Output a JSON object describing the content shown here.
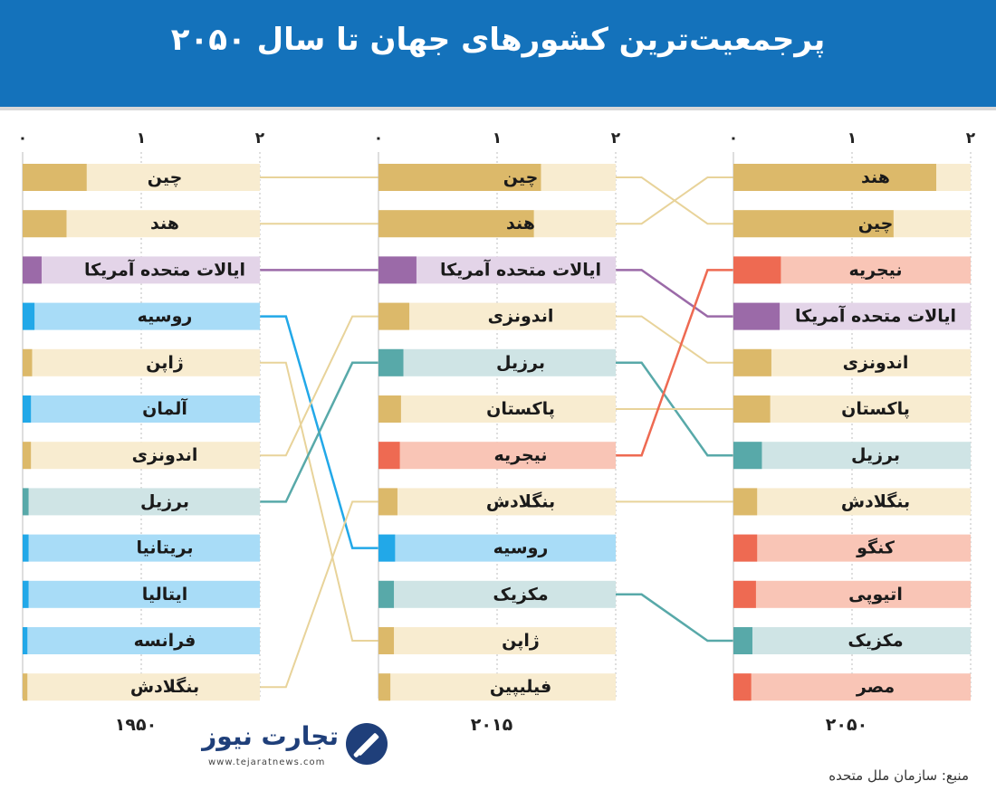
{
  "header": {
    "title": "پرجمعیت‌ترین کشورهای جهان تا سال ۲۰۵۰"
  },
  "source": "منبع: سازمان ملل متحده",
  "logo": {
    "name": "تجارت نیوز",
    "url": "www.tejaratnews.com"
  },
  "colors": {
    "header_bg": "#1472bb",
    "asia_bar": "#dcb96a",
    "asia_bg": "#f8ecd0",
    "america_bar": "#9b6aa8",
    "america_bg": "#e3d4e8",
    "europe_bar": "#22a8e8",
    "europe_bg": "#a8dcf7",
    "latam_bar": "#58a9a9",
    "latam_bg": "#cfe4e5",
    "africa_bar": "#ee6a52",
    "africa_bg": "#f9c5b6"
  },
  "chart_data": {
    "type": "bar",
    "axis_ticks": [
      "۰",
      "۱",
      "۲"
    ],
    "xlim": [
      0,
      2
    ],
    "panels": [
      {
        "year": "۱۹۵۰",
        "bars": [
          {
            "name": "چین",
            "value": 0.54,
            "group": "asia"
          },
          {
            "name": "هند",
            "value": 0.37,
            "group": "asia"
          },
          {
            "name": "ایالات متحده آمریکا",
            "value": 0.16,
            "group": "america"
          },
          {
            "name": "روسیه",
            "value": 0.1,
            "group": "europe"
          },
          {
            "name": "ژاپن",
            "value": 0.08,
            "group": "asia"
          },
          {
            "name": "آلمان",
            "value": 0.07,
            "group": "europe"
          },
          {
            "name": "اندونزی",
            "value": 0.07,
            "group": "asia"
          },
          {
            "name": "برزیل",
            "value": 0.05,
            "group": "latam"
          },
          {
            "name": "بریتانیا",
            "value": 0.05,
            "group": "europe"
          },
          {
            "name": "ایتالیا",
            "value": 0.05,
            "group": "europe"
          },
          {
            "name": "فرانسه",
            "value": 0.04,
            "group": "europe"
          },
          {
            "name": "بنگلادش",
            "value": 0.04,
            "group": "asia"
          }
        ]
      },
      {
        "year": "۲۰۱۵",
        "bars": [
          {
            "name": "چین",
            "value": 1.37,
            "group": "asia"
          },
          {
            "name": "هند",
            "value": 1.31,
            "group": "asia"
          },
          {
            "name": "ایالات متحده آمریکا",
            "value": 0.32,
            "group": "america"
          },
          {
            "name": "اندونزی",
            "value": 0.26,
            "group": "asia"
          },
          {
            "name": "برزیل",
            "value": 0.21,
            "group": "latam"
          },
          {
            "name": "پاکستان",
            "value": 0.19,
            "group": "asia"
          },
          {
            "name": "نیجریه",
            "value": 0.18,
            "group": "africa"
          },
          {
            "name": "بنگلادش",
            "value": 0.16,
            "group": "asia"
          },
          {
            "name": "روسیه",
            "value": 0.14,
            "group": "europe"
          },
          {
            "name": "مکزیک",
            "value": 0.13,
            "group": "latam"
          },
          {
            "name": "ژاپن",
            "value": 0.13,
            "group": "asia"
          },
          {
            "name": "فیلیپین",
            "value": 0.1,
            "group": "asia"
          }
        ]
      },
      {
        "year": "۲۰۵۰",
        "bars": [
          {
            "name": "هند",
            "value": 1.71,
            "group": "asia"
          },
          {
            "name": "چین",
            "value": 1.35,
            "group": "asia"
          },
          {
            "name": "نیجریه",
            "value": 0.4,
            "group": "africa"
          },
          {
            "name": "ایالات متحده آمریکا",
            "value": 0.39,
            "group": "america"
          },
          {
            "name": "اندونزی",
            "value": 0.32,
            "group": "asia"
          },
          {
            "name": "پاکستان",
            "value": 0.31,
            "group": "asia"
          },
          {
            "name": "برزیل",
            "value": 0.24,
            "group": "latam"
          },
          {
            "name": "بنگلادش",
            "value": 0.2,
            "group": "asia"
          },
          {
            "name": "کنگو",
            "value": 0.2,
            "group": "africa"
          },
          {
            "name": "اتیوپی",
            "value": 0.19,
            "group": "africa"
          },
          {
            "name": "مکزیک",
            "value": 0.16,
            "group": "latam"
          },
          {
            "name": "مصر",
            "value": 0.15,
            "group": "africa"
          }
        ]
      }
    ],
    "links": [
      {
        "from_panel": 0,
        "from_rank": 0,
        "to_rank": 0,
        "group": "asia"
      },
      {
        "from_panel": 0,
        "from_rank": 1,
        "to_rank": 1,
        "group": "asia"
      },
      {
        "from_panel": 0,
        "from_rank": 2,
        "to_rank": 2,
        "group": "america"
      },
      {
        "from_panel": 0,
        "from_rank": 3,
        "to_rank": 8,
        "group": "europe"
      },
      {
        "from_panel": 0,
        "from_rank": 4,
        "to_rank": 10,
        "group": "asia"
      },
      {
        "from_panel": 0,
        "from_rank": 6,
        "to_rank": 3,
        "group": "asia"
      },
      {
        "from_panel": 0,
        "from_rank": 7,
        "to_rank": 4,
        "group": "latam"
      },
      {
        "from_panel": 0,
        "from_rank": 11,
        "to_rank": 7,
        "group": "asia"
      },
      {
        "from_panel": 1,
        "from_rank": 0,
        "to_rank": 1,
        "group": "asia"
      },
      {
        "from_panel": 1,
        "from_rank": 1,
        "to_rank": 0,
        "group": "asia"
      },
      {
        "from_panel": 1,
        "from_rank": 2,
        "to_rank": 3,
        "group": "america"
      },
      {
        "from_panel": 1,
        "from_rank": 3,
        "to_rank": 4,
        "group": "asia"
      },
      {
        "from_panel": 1,
        "from_rank": 4,
        "to_rank": 6,
        "group": "latam"
      },
      {
        "from_panel": 1,
        "from_rank": 5,
        "to_rank": 5,
        "group": "asia"
      },
      {
        "from_panel": 1,
        "from_rank": 6,
        "to_rank": 2,
        "group": "africa"
      },
      {
        "from_panel": 1,
        "from_rank": 7,
        "to_rank": 7,
        "group": "asia"
      },
      {
        "from_panel": 1,
        "from_rank": 9,
        "to_rank": 10,
        "group": "latam"
      }
    ]
  }
}
